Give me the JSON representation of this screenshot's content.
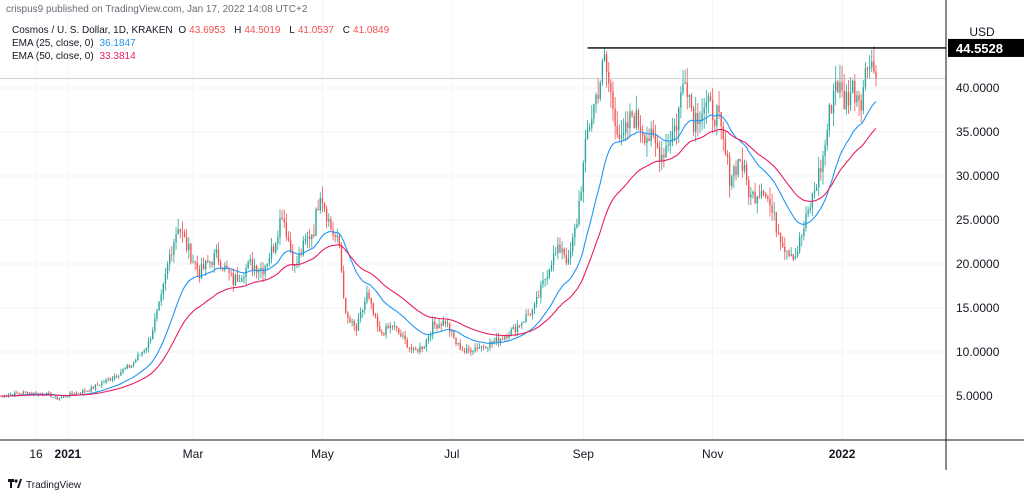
{
  "header": {
    "text": "crispus9 published on TradingView.com, Jan 17, 2022 14:08 UTC+2"
  },
  "legend": {
    "title": "Cosmos / U. S. Dollar, 1D, KRAKEN",
    "ohlc": [
      {
        "label": "O",
        "value": "43.6953"
      },
      {
        "label": "H",
        "value": "44.5019"
      },
      {
        "label": "L",
        "value": "41.0537"
      },
      {
        "label": "C",
        "value": "41.0849"
      }
    ],
    "ema25": {
      "label": "EMA (25, close, 0)",
      "value": "36.1847"
    },
    "ema50": {
      "label": "EMA (50, close, 0)",
      "value": "33.3814"
    }
  },
  "footer": {
    "brand": "TradingView"
  },
  "colors": {
    "up": "#26a69a",
    "down": "#ef5350",
    "ema25": "#2196f3",
    "ema50": "#e91e63",
    "grid": "#f0f3fa",
    "axis": "#131722"
  },
  "chart_data": {
    "type": "candlestick",
    "title": "Cosmos / U. S. Dollar, 1D, KRAKEN",
    "currency": "USD",
    "ylim": [
      0,
      50
    ],
    "y_ticks": [
      5,
      10,
      15,
      20,
      25,
      30,
      35,
      40
    ],
    "y_tick_labels": [
      "5.0000",
      "10.0000",
      "15.0000",
      "20.0000",
      "25.0000",
      "30.0000",
      "35.0000",
      "40.0000"
    ],
    "x_labels": [
      {
        "label": "16",
        "day": -15,
        "bold": false
      },
      {
        "label": "2021",
        "day": 0,
        "bold": true
      },
      {
        "label": "Mar",
        "day": 59,
        "bold": false
      },
      {
        "label": "May",
        "day": 120,
        "bold": false
      },
      {
        "label": "Jul",
        "day": 181,
        "bold": false
      },
      {
        "label": "Sep",
        "day": 243,
        "bold": false
      },
      {
        "label": "Nov",
        "day": 304,
        "bold": false
      },
      {
        "label": "2022",
        "day": 365,
        "bold": true
      }
    ],
    "x_range_days": [
      -32,
      414
    ],
    "last_day": 381,
    "price_points": [
      [
        -32,
        5.0
      ],
      [
        -20,
        5.4
      ],
      [
        -10,
        5.2
      ],
      [
        -5,
        4.7
      ],
      [
        0,
        5.1
      ],
      [
        10,
        5.7
      ],
      [
        20,
        7.0
      ],
      [
        30,
        8.5
      ],
      [
        38,
        11.0
      ],
      [
        44,
        16.0
      ],
      [
        48,
        21.0
      ],
      [
        52,
        24.5
      ],
      [
        56,
        22.0
      ],
      [
        62,
        19.0
      ],
      [
        70,
        21.0
      ],
      [
        78,
        18.0
      ],
      [
        86,
        20.0
      ],
      [
        92,
        19.5
      ],
      [
        97,
        22.0
      ],
      [
        101,
        26.0
      ],
      [
        107,
        19.5
      ],
      [
        112,
        22.5
      ],
      [
        116,
        24.0
      ],
      [
        119,
        28.5
      ],
      [
        124,
        24.0
      ],
      [
        128,
        22.0
      ],
      [
        131,
        14.0
      ],
      [
        136,
        12.5
      ],
      [
        141,
        16.5
      ],
      [
        147,
        12.0
      ],
      [
        153,
        13.0
      ],
      [
        158,
        11.5
      ],
      [
        163,
        10.0
      ],
      [
        168,
        10.8
      ],
      [
        172,
        13.0
      ],
      [
        178,
        13.5
      ],
      [
        183,
        11.0
      ],
      [
        187,
        10.0
      ],
      [
        192,
        10.5
      ],
      [
        200,
        11.0
      ],
      [
        210,
        12.5
      ],
      [
        220,
        15.0
      ],
      [
        228,
        20.5
      ],
      [
        233,
        22.0
      ],
      [
        236,
        20.0
      ],
      [
        240,
        25.0
      ],
      [
        245,
        35.0
      ],
      [
        250,
        40.0
      ],
      [
        253,
        43.0
      ],
      [
        257,
        38.0
      ],
      [
        261,
        33.5
      ],
      [
        266,
        37.0
      ],
      [
        272,
        35.0
      ],
      [
        280,
        32.5
      ],
      [
        287,
        36.0
      ],
      [
        291,
        42.0
      ],
      [
        295,
        36.5
      ],
      [
        300,
        38.0
      ],
      [
        306,
        37.0
      ],
      [
        312,
        30.0
      ],
      [
        317,
        32.0
      ],
      [
        322,
        27.5
      ],
      [
        328,
        29.0
      ],
      [
        333,
        25.0
      ],
      [
        338,
        22.0
      ],
      [
        343,
        21.0
      ],
      [
        347,
        24.0
      ],
      [
        351,
        27.5
      ],
      [
        356,
        32.0
      ],
      [
        359,
        37.0
      ],
      [
        362,
        41.0
      ],
      [
        366,
        38.5
      ],
      [
        370,
        40.0
      ],
      [
        374,
        39.0
      ],
      [
        378,
        44.0
      ],
      [
        381,
        41.1
      ]
    ],
    "ema25_last": 36.1847,
    "ema50_last": 33.3814,
    "last_price": 41.0849,
    "resistance": {
      "value": 44.5528,
      "label": "44.5528",
      "start_day": 245,
      "end_day": 381
    }
  }
}
